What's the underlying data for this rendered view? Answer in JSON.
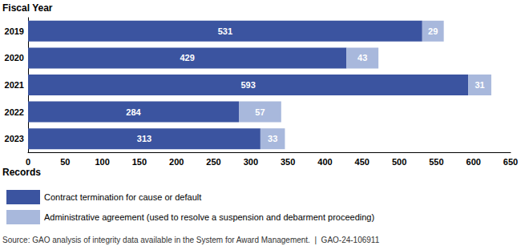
{
  "chart_data": {
    "type": "bar",
    "orientation": "horizontal",
    "stacked": true,
    "data_labels": true,
    "grid": false,
    "y_axis_label": "Fiscal Year",
    "x_axis_label": "Records",
    "source": "Source: GAO analysis of integrity data available in the System for Award Management.  |  GAO-24-106911",
    "categories": [
      "2019",
      "2020",
      "2021",
      "2022",
      "2023"
    ],
    "series": [
      {
        "name": "Contract termination for cause or default",
        "color": "#3b54a0",
        "values": [
          531,
          429,
          593,
          284,
          313
        ]
      },
      {
        "name": "Administrative agreement (used to resolve a suspension and debarment proceeding)",
        "color": "#a8b8dc",
        "values": [
          29,
          43,
          31,
          57,
          33
        ]
      }
    ],
    "xlim": [
      0,
      650
    ],
    "xticks": [
      0,
      50,
      100,
      150,
      200,
      250,
      300,
      350,
      400,
      450,
      500,
      550,
      600,
      650
    ]
  }
}
